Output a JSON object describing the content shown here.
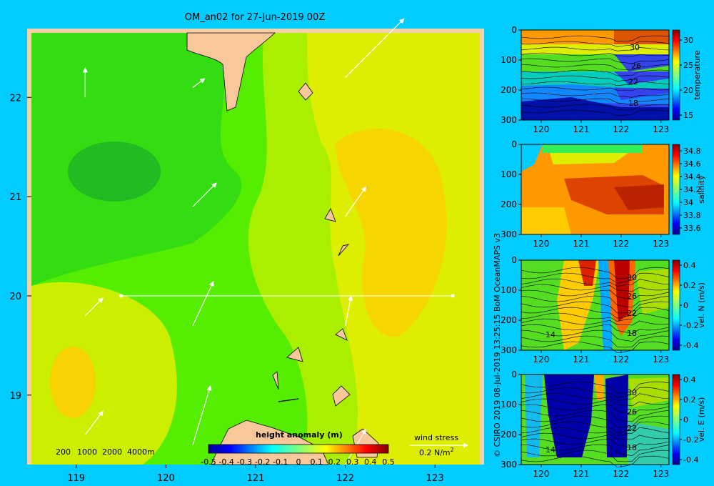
{
  "title": "OM_an02 for 27-Jun-2019 00Z",
  "credit": "© CSIRO 2019   08-Jul-2019 13:25:15 BoM OceanMAPS v3",
  "colors": {
    "background": "#00ccff",
    "land": "#f8c89a",
    "map_border": "#f7d0a8"
  },
  "chart_data": [
    {
      "type": "heatmap",
      "name": "map",
      "x_ticks": [
        119,
        120,
        121,
        122,
        123
      ],
      "y_ticks": [
        19,
        20,
        21,
        22
      ],
      "xlim": [
        118.5,
        123.5
      ],
      "ylim": [
        18.3,
        22.65
      ],
      "transect": {
        "lon": [
          119.5,
          123.2
        ],
        "lat": [
          20.0,
          20.0
        ]
      },
      "depth_legend": [
        "200",
        "1000",
        "2000",
        "4000m"
      ],
      "colorbar": {
        "label": "height anomaly (m)",
        "ticks": [
          "-0.5",
          "-0.4",
          "-0.3",
          "-0.2",
          "-0.1",
          "0",
          "0.1",
          "0.2",
          "0.3",
          "0.4",
          "0.5"
        ],
        "range": [
          -0.5,
          0.5
        ]
      },
      "wind_stress_label": "wind stress",
      "wind_stress_scale": "0.2 N/m",
      "wind_stress_exp": "2",
      "wind_arrows": [
        {
          "lon": 119.1,
          "lat": 22.0,
          "u": 0.0,
          "v": 0.1
        },
        {
          "lon": 120.3,
          "lat": 22.1,
          "u": 0.04,
          "v": 0.03
        },
        {
          "lon": 122.0,
          "lat": 22.2,
          "u": 0.2,
          "v": 0.2
        },
        {
          "lon": 120.3,
          "lat": 20.9,
          "u": 0.08,
          "v": 0.08
        },
        {
          "lon": 122.0,
          "lat": 20.8,
          "u": 0.07,
          "v": 0.1
        },
        {
          "lon": 119.1,
          "lat": 19.8,
          "u": 0.06,
          "v": 0.06
        },
        {
          "lon": 120.3,
          "lat": 19.7,
          "u": 0.07,
          "v": 0.15
        },
        {
          "lon": 122.0,
          "lat": 19.7,
          "u": 0.02,
          "v": 0.1
        },
        {
          "lon": 119.1,
          "lat": 18.6,
          "u": 0.06,
          "v": 0.08
        },
        {
          "lon": 120.3,
          "lat": 18.5,
          "u": 0.06,
          "v": 0.2
        },
        {
          "lon": 122.0,
          "lat": 18.3,
          "u": 0.07,
          "v": 0.12
        }
      ]
    },
    {
      "type": "heatmap",
      "name": "temperature",
      "x_ticks": [
        120,
        121,
        122,
        123
      ],
      "y_ticks": [
        0,
        100,
        200,
        300
      ],
      "xlim": [
        119.5,
        123.2
      ],
      "ylim": [
        300,
        0
      ],
      "colorbar": {
        "label": "temperature",
        "ticks": [
          15,
          20,
          25,
          30
        ],
        "range": [
          14,
          32
        ]
      },
      "contour_labels": [
        "30",
        "26",
        "22",
        "18"
      ]
    },
    {
      "type": "heatmap",
      "name": "salinity",
      "x_ticks": [
        120,
        121,
        122,
        123
      ],
      "y_ticks": [
        0,
        100,
        200,
        300
      ],
      "xlim": [
        119.5,
        123.2
      ],
      "ylim": [
        300,
        0
      ],
      "colorbar": {
        "label": "salinity",
        "ticks": [
          "33.6",
          "33.8",
          "34",
          "34.2",
          "34.4",
          "34.6",
          "34.8"
        ],
        "range": [
          33.5,
          34.9
        ]
      }
    },
    {
      "type": "heatmap",
      "name": "vel_n",
      "x_ticks": [
        120,
        121,
        122,
        123
      ],
      "y_ticks": [
        0,
        100,
        200,
        300
      ],
      "xlim": [
        119.5,
        123.2
      ],
      "ylim": [
        300,
        0
      ],
      "colorbar": {
        "label": "vel. N (m/s)",
        "ticks": [
          "-0.4",
          "-0.2",
          "0",
          "0.2",
          "0.4"
        ],
        "range": [
          -0.45,
          0.45
        ]
      },
      "contour_labels": [
        "14",
        "30",
        "26",
        "22",
        "18"
      ]
    },
    {
      "type": "heatmap",
      "name": "vel_e",
      "x_ticks": [
        120,
        121,
        122,
        123
      ],
      "y_ticks": [
        0,
        100,
        200,
        300
      ],
      "xlim": [
        119.5,
        123.2
      ],
      "ylim": [
        300,
        0
      ],
      "colorbar": {
        "label": "vel. E (m/s)",
        "ticks": [
          "-0.4",
          "-0.2",
          "0",
          "0.2",
          "0.4"
        ],
        "range": [
          -0.45,
          0.45
        ]
      },
      "contour_labels": [
        "14",
        "30",
        "26",
        "22",
        "18"
      ]
    }
  ]
}
